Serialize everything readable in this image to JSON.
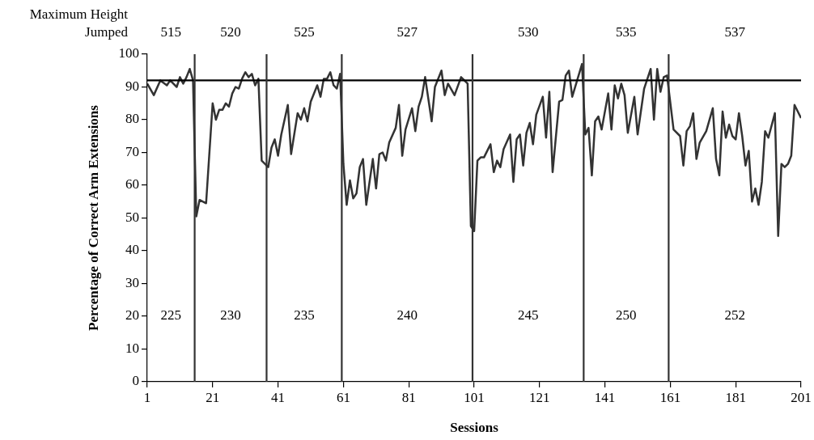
{
  "chart_data": {
    "type": "line",
    "xlabel": "Sessions",
    "ylabel": "Percentage of Correct Arm Extensions",
    "x": [
      1,
      3,
      5,
      7,
      8,
      10,
      11,
      12,
      13,
      14,
      15,
      16,
      17,
      19,
      21,
      22,
      23,
      24,
      25,
      26,
      27,
      28,
      29,
      30,
      31,
      32,
      33,
      34,
      35,
      36,
      38,
      39,
      40,
      41,
      42,
      44,
      45,
      47,
      48,
      49,
      50,
      51,
      53,
      54,
      55,
      56,
      57,
      58,
      59,
      60,
      61,
      62,
      63,
      64,
      65,
      66,
      67,
      68,
      70,
      71,
      72,
      73,
      74,
      75,
      77,
      78,
      79,
      80,
      82,
      83,
      84,
      85,
      86,
      88,
      89,
      91,
      92,
      93,
      95,
      97,
      99,
      100,
      101,
      102,
      103,
      104,
      106,
      107,
      108,
      109,
      110,
      112,
      113,
      114,
      115,
      116,
      117,
      118,
      119,
      120,
      122,
      123,
      124,
      125,
      127,
      128,
      129,
      130,
      131,
      134,
      135,
      136,
      137,
      138,
      139,
      140,
      142,
      143,
      144,
      145,
      146,
      147,
      148,
      150,
      151,
      153,
      155,
      156,
      157,
      158,
      159,
      160,
      162,
      164,
      165,
      166,
      167,
      168,
      169,
      170,
      172,
      174,
      175,
      176,
      177,
      178,
      179,
      180,
      181,
      182,
      183,
      184,
      185,
      186,
      187,
      188,
      189,
      190,
      191,
      193,
      194,
      195,
      196,
      197,
      198,
      199,
      201
    ],
    "series": [
      {
        "color": "#333333",
        "values": [
          91,
          87.5,
          92,
          90.5,
          92,
          90,
          93,
          91,
          93,
          95.5,
          92,
          50.5,
          55.5,
          54.5,
          85,
          80,
          83,
          83,
          85,
          84,
          88,
          90,
          89.5,
          92.5,
          94.5,
          93,
          94,
          90.5,
          92.5,
          67.5,
          65.5,
          71.5,
          74,
          69,
          75.5,
          84.5,
          69.5,
          82,
          80,
          83.5,
          79.5,
          85.5,
          90.5,
          87,
          92.5,
          92.5,
          94.5,
          90.5,
          89.5,
          94,
          66.5,
          54,
          61.5,
          56,
          57.5,
          65.5,
          68,
          54,
          68,
          59,
          69.5,
          70,
          67.5,
          73,
          77.5,
          84.5,
          69,
          77,
          83.5,
          76.5,
          84,
          87,
          93,
          79.5,
          90,
          95,
          87.5,
          91,
          87.5,
          93,
          91,
          47.5,
          46,
          67.5,
          68.5,
          68.5,
          72.5,
          64,
          67.5,
          65.5,
          71,
          75.5,
          61,
          74,
          75.5,
          66,
          76,
          79,
          72.5,
          81.5,
          87,
          74.5,
          88.5,
          64,
          85.5,
          86,
          93.5,
          95,
          87,
          97,
          75.5,
          77.5,
          63,
          79.5,
          81,
          77,
          88,
          77,
          90.5,
          86.5,
          91,
          87.5,
          76,
          87,
          75.5,
          89.5,
          95.5,
          80,
          95.5,
          88.5,
          93,
          93.5,
          77,
          75,
          66,
          76.5,
          78,
          82,
          68,
          73,
          76.5,
          83.5,
          68,
          63,
          82.5,
          74.5,
          78.5,
          75,
          74,
          82,
          75,
          66,
          70.5,
          55,
          59,
          54,
          61,
          76.5,
          74.5,
          82,
          44.5,
          66.5,
          65.5,
          66.5,
          69,
          84.5,
          80.5
        ]
      }
    ],
    "xlim": [
      1,
      201
    ],
    "xticks": [
      1,
      21,
      41,
      61,
      81,
      101,
      121,
      141,
      161,
      181,
      201
    ],
    "ylim": [
      0,
      100
    ],
    "yticks": [
      0,
      10,
      20,
      30,
      40,
      50,
      60,
      70,
      80,
      90,
      100
    ],
    "ref_lines": [
      {
        "axis": "y",
        "value": 92,
        "color": "#000000"
      },
      {
        "axis": "x",
        "value": 15.5,
        "color": "#333333"
      },
      {
        "axis": "x",
        "value": 37.5,
        "color": "#333333"
      },
      {
        "axis": "x",
        "value": 60.5,
        "color": "#333333"
      },
      {
        "axis": "x",
        "value": 100.5,
        "color": "#333333"
      },
      {
        "axis": "x",
        "value": 134.5,
        "color": "#333333"
      },
      {
        "axis": "x",
        "value": 160.5,
        "color": "#333333"
      }
    ],
    "annotations": [
      "Maximum Height Jumped",
      "515",
      "520",
      "525",
      "527",
      "530",
      "535",
      "537",
      "225",
      "230",
      "235",
      "240",
      "245",
      "250",
      "252"
    ],
    "grid": false,
    "legend": false,
    "marker": "none",
    "line_style": "solid"
  }
}
